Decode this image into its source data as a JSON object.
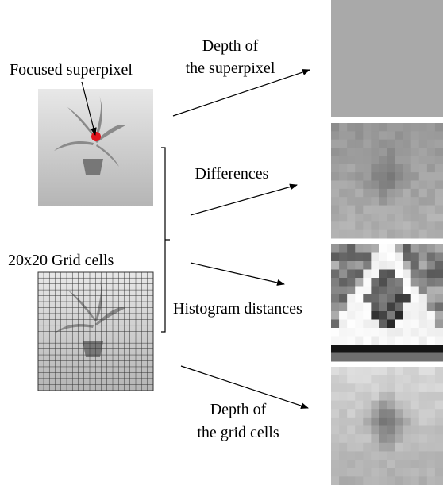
{
  "labels": {
    "focused_superpixel": "Focused superpixel",
    "depth_superpixel": [
      "Depth of",
      "the superpixel"
    ],
    "differences": "Differences",
    "grid_cells": "20x20 Grid cells",
    "histogram_distances": "Histogram distances",
    "depth_grid_cells": [
      "Depth of",
      "the grid cells"
    ]
  }
}
